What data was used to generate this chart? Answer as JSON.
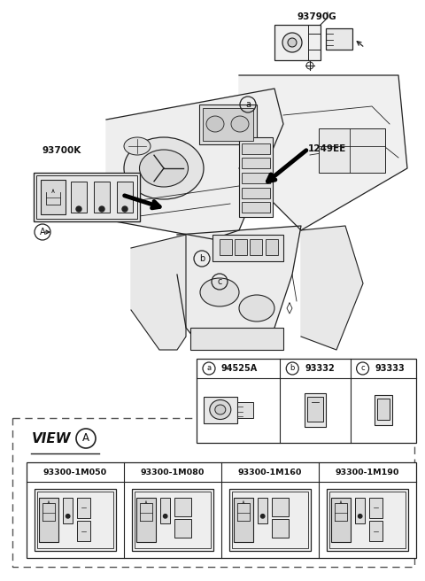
{
  "bg_color": "#ffffff",
  "fig_width": 4.8,
  "fig_height": 6.56,
  "dpi": 100,
  "lc": "#222222",
  "tc": "#111111",
  "view_parts": [
    "93300-1M050",
    "93300-1M080",
    "93300-1M160",
    "93300-1M190"
  ],
  "part_labels_93790G": "93790G",
  "part_labels_1249EE": "1249EE",
  "part_labels_93700K": "93700K",
  "part_labels_94525A": "94525A",
  "part_labels_93332": "93332",
  "part_labels_93333": "93333",
  "view_label": "VIEW",
  "view_circle": "A"
}
